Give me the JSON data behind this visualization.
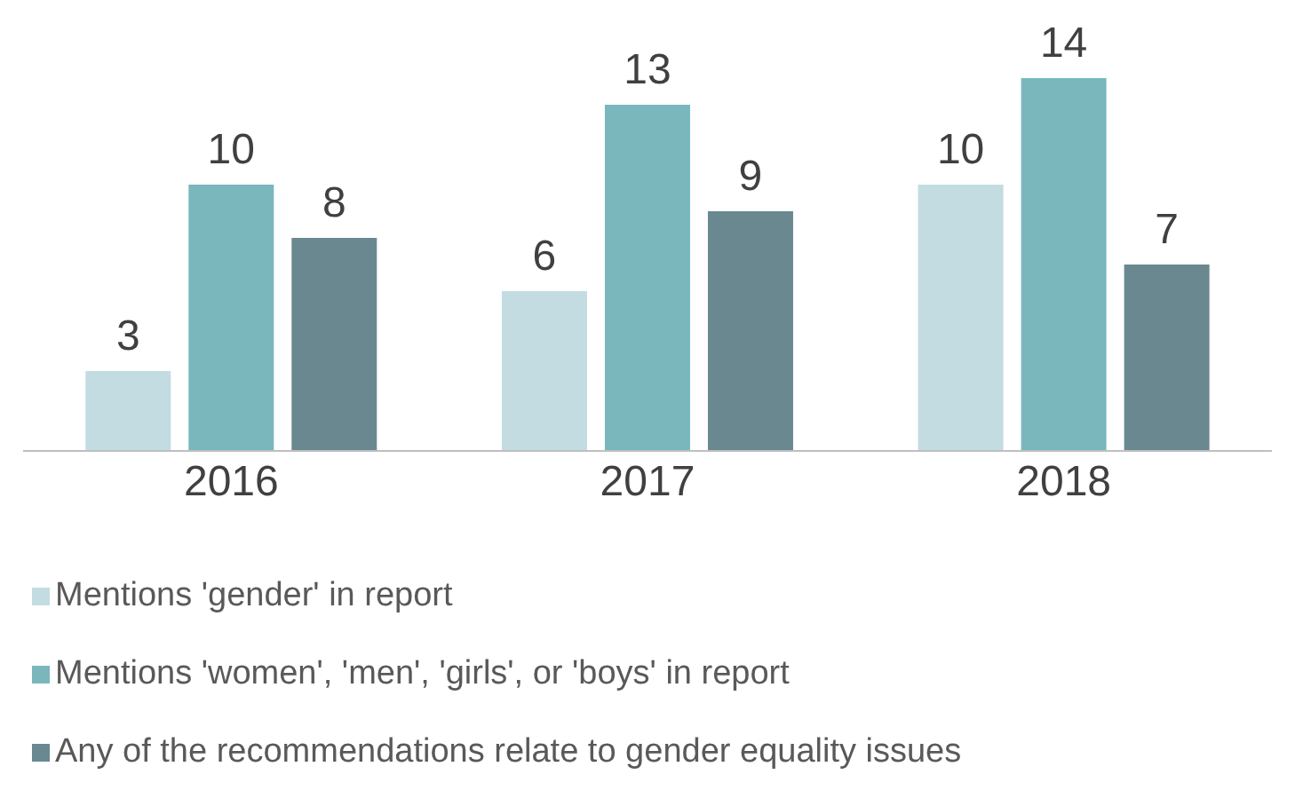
{
  "chart_data": {
    "type": "bar",
    "categories": [
      "2016",
      "2017",
      "2018"
    ],
    "series": [
      {
        "name": "Mentions 'gender' in report",
        "color": "#c3dce1",
        "values": [
          3,
          6,
          10
        ]
      },
      {
        "name": "Mentions 'women', 'men', 'girls', or 'boys' in report",
        "color": "#7ab7bd",
        "values": [
          10,
          13,
          14
        ]
      },
      {
        "name": "Any of the recommendations relate to gender equality issues",
        "color": "#6a8890",
        "values": [
          8,
          9,
          7
        ]
      }
    ],
    "data_labels": true,
    "legend": "bottom",
    "grid": false
  }
}
